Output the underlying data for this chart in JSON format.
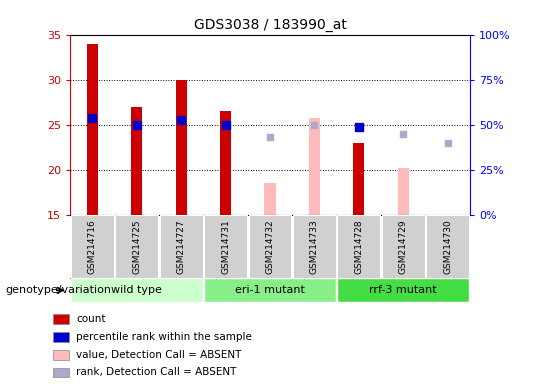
{
  "title": "GDS3038 / 183990_at",
  "samples": [
    "GSM214716",
    "GSM214725",
    "GSM214727",
    "GSM214731",
    "GSM214732",
    "GSM214733",
    "GSM214728",
    "GSM214729",
    "GSM214730"
  ],
  "groups": [
    {
      "label": "wild type",
      "indices": [
        0,
        1,
        2
      ],
      "color": "#ccffcc"
    },
    {
      "label": "eri-1 mutant",
      "indices": [
        3,
        4,
        5
      ],
      "color": "#88ee88"
    },
    {
      "label": "rrf-3 mutant",
      "indices": [
        6,
        7,
        8
      ],
      "color": "#44dd44"
    }
  ],
  "count_values": [
    34,
    27,
    30,
    26.5,
    null,
    null,
    23,
    null,
    null
  ],
  "count_color": "#cc0000",
  "absent_value_values": [
    null,
    null,
    null,
    null,
    18.5,
    25.7,
    null,
    20.2,
    null
  ],
  "absent_value_color": "#ffbbbb",
  "percentile_rank_values": [
    25.7,
    25,
    25.5,
    25,
    null,
    null,
    24.8,
    null,
    null
  ],
  "percentile_rank_color": "#0000cc",
  "absent_rank_values": [
    null,
    null,
    null,
    null,
    23.7,
    25.0,
    null,
    24.0,
    23.0
  ],
  "absent_rank_color": "#aaaacc",
  "ylim": [
    15,
    35
  ],
  "yticks": [
    15,
    20,
    25,
    30,
    35
  ],
  "y2lim": [
    0,
    100
  ],
  "y2ticks": [
    0,
    25,
    50,
    75,
    100
  ],
  "bar_width": 0.25,
  "absent_bar_width": 0.25,
  "dot_size": 28,
  "absent_dot_size": 22,
  "grid_yticks": [
    20,
    25,
    30
  ],
  "sample_box_color": "#d0d0d0",
  "plot_bg": "white",
  "genotype_label": "genotype/variation",
  "legend_entries": [
    {
      "label": "count",
      "color": "#cc0000"
    },
    {
      "label": "percentile rank within the sample",
      "color": "#0000cc"
    },
    {
      "label": "value, Detection Call = ABSENT",
      "color": "#ffbbbb"
    },
    {
      "label": "rank, Detection Call = ABSENT",
      "color": "#aaaacc"
    }
  ]
}
